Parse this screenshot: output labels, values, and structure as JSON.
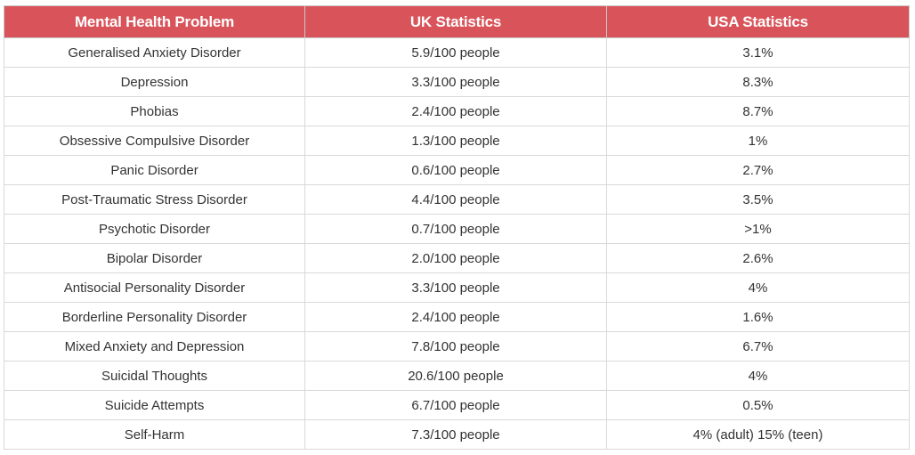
{
  "table": {
    "headers": [
      "Mental Health Problem",
      "UK Statistics",
      "USA Statistics"
    ],
    "rows": [
      [
        "Generalised Anxiety Disorder",
        "5.9/100 people",
        "3.1%"
      ],
      [
        "Depression",
        "3.3/100 people",
        "8.3%"
      ],
      [
        "Phobias",
        "2.4/100 people",
        "8.7%"
      ],
      [
        "Obsessive Compulsive Disorder",
        "1.3/100 people",
        "1%"
      ],
      [
        "Panic Disorder",
        "0.6/100 people",
        "2.7%"
      ],
      [
        "Post-Traumatic Stress Disorder",
        "4.4/100 people",
        "3.5%"
      ],
      [
        "Psychotic Disorder",
        "0.7/100 people",
        ">1%"
      ],
      [
        "Bipolar Disorder",
        "2.0/100 people",
        "2.6%"
      ],
      [
        "Antisocial Personality Disorder",
        "3.3/100 people",
        "4%"
      ],
      [
        "Borderline Personality Disorder",
        "2.4/100 people",
        "1.6%"
      ],
      [
        "Mixed Anxiety and Depression",
        "7.8/100 people",
        "6.7%"
      ],
      [
        "Suicidal Thoughts",
        "20.6/100 people",
        "4%"
      ],
      [
        "Suicide Attempts",
        "6.7/100 people",
        "0.5%"
      ],
      [
        "Self-Harm",
        "7.3/100 people",
        "4% (adult) 15% (teen)"
      ]
    ]
  },
  "colors": {
    "header_background": "#d9545a",
    "header_text": "#ffffff",
    "cell_text": "#333333",
    "border": "#d9d9d9"
  }
}
